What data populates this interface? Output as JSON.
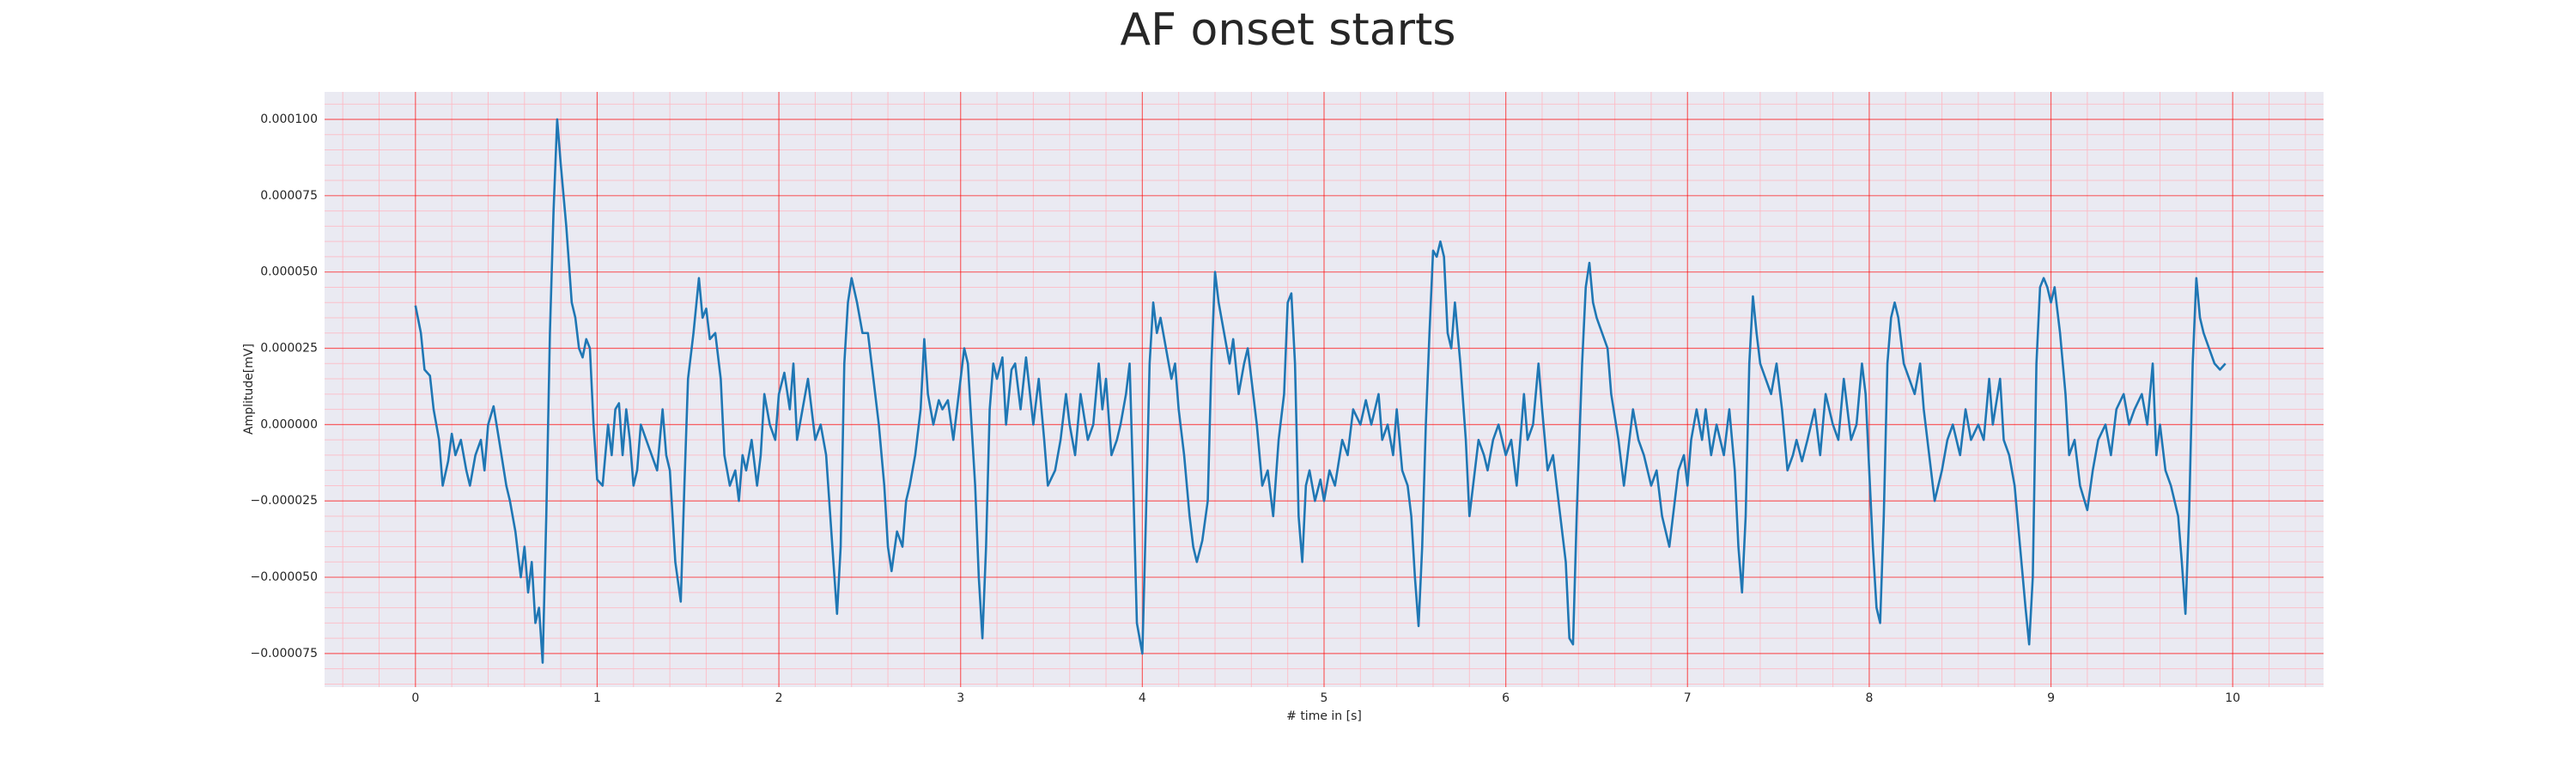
{
  "chart_data": {
    "type": "line",
    "title": "AF onset starts",
    "xlabel": "# time in [s]",
    "ylabel": "Amplitude[mV]",
    "color": "#1f77b4",
    "background": "#eaeaf2",
    "grid": true,
    "grid_color": "#ff0000",
    "minor_grid": true,
    "minor_grid_color": "#ffb6c1",
    "xlim": [
      -0.5,
      10.5
    ],
    "xticks": [
      0,
      1,
      2,
      3,
      4,
      5,
      6,
      7,
      8,
      9,
      10
    ],
    "ylim": [
      -8.6e-05,
      0.000109
    ],
    "yticks": [
      {
        "value": -7.5e-05,
        "label": "−0.000075"
      },
      {
        "value": -5e-05,
        "label": "−0.000050"
      },
      {
        "value": -2.5e-05,
        "label": "−0.000025"
      },
      {
        "value": 0,
        "label": "0.000000"
      },
      {
        "value": 2.5e-05,
        "label": "0.000025"
      },
      {
        "value": 5e-05,
        "label": "0.000050"
      },
      {
        "value": 7.5e-05,
        "label": "0.000075"
      },
      {
        "value": 0.0001,
        "label": "0.000100"
      }
    ],
    "x": [
      0.0,
      0.03,
      0.05,
      0.08,
      0.1,
      0.13,
      0.15,
      0.18,
      0.2,
      0.22,
      0.25,
      0.28,
      0.3,
      0.33,
      0.36,
      0.38,
      0.4,
      0.43,
      0.46,
      0.5,
      0.52,
      0.55,
      0.58,
      0.6,
      0.62,
      0.64,
      0.66,
      0.68,
      0.7,
      0.72,
      0.74,
      0.76,
      0.78,
      0.8,
      0.83,
      0.86,
      0.88,
      0.9,
      0.92,
      0.94,
      0.96,
      0.98,
      1.0,
      1.03,
      1.06,
      1.08,
      1.1,
      1.12,
      1.14,
      1.16,
      1.18,
      1.2,
      1.22,
      1.24,
      1.27,
      1.3,
      1.33,
      1.36,
      1.38,
      1.4,
      1.43,
      1.46,
      1.48,
      1.5,
      1.53,
      1.56,
      1.58,
      1.6,
      1.62,
      1.65,
      1.68,
      1.7,
      1.73,
      1.76,
      1.78,
      1.8,
      1.82,
      1.85,
      1.88,
      1.9,
      1.92,
      1.95,
      1.98,
      2.0,
      2.03,
      2.06,
      2.08,
      2.1,
      2.13,
      2.16,
      2.2,
      2.23,
      2.26,
      2.3,
      2.32,
      2.34,
      2.36,
      2.38,
      2.4,
      2.43,
      2.46,
      2.49,
      2.52,
      2.55,
      2.58,
      2.6,
      2.62,
      2.65,
      2.68,
      2.7,
      2.72,
      2.75,
      2.78,
      2.8,
      2.82,
      2.85,
      2.88,
      2.9,
      2.93,
      2.96,
      3.0,
      3.02,
      3.04,
      3.06,
      3.08,
      3.1,
      3.12,
      3.14,
      3.16,
      3.18,
      3.2,
      3.23,
      3.25,
      3.28,
      3.3,
      3.33,
      3.36,
      3.4,
      3.43,
      3.46,
      3.48,
      3.52,
      3.55,
      3.58,
      3.6,
      3.63,
      3.66,
      3.7,
      3.73,
      3.76,
      3.78,
      3.8,
      3.83,
      3.86,
      3.88,
      3.91,
      3.93,
      3.95,
      3.97,
      4.0,
      4.02,
      4.04,
      4.06,
      4.08,
      4.1,
      4.13,
      4.16,
      4.18,
      4.2,
      4.23,
      4.26,
      4.28,
      4.3,
      4.33,
      4.36,
      4.38,
      4.4,
      4.42,
      4.45,
      4.48,
      4.5,
      4.53,
      4.56,
      4.58,
      4.6,
      4.63,
      4.66,
      4.69,
      4.72,
      4.75,
      4.78,
      4.8,
      4.82,
      4.84,
      4.86,
      4.88,
      4.9,
      4.92,
      4.95,
      4.98,
      5.0,
      5.03,
      5.06,
      5.1,
      5.13,
      5.16,
      5.2,
      5.23,
      5.26,
      5.3,
      5.32,
      5.35,
      5.38,
      5.4,
      5.43,
      5.46,
      5.48,
      5.5,
      5.52,
      5.54,
      5.56,
      5.58,
      5.6,
      5.62,
      5.64,
      5.66,
      5.68,
      5.7,
      5.72,
      5.75,
      5.78,
      5.8,
      5.82,
      5.85,
      5.88,
      5.9,
      5.93,
      5.96,
      6.0,
      6.03,
      6.06,
      6.1,
      6.12,
      6.15,
      6.18,
      6.2,
      6.23,
      6.26,
      6.3,
      6.33,
      6.35,
      6.37,
      6.39,
      6.42,
      6.44,
      6.46,
      6.48,
      6.5,
      6.53,
      6.56,
      6.58,
      6.62,
      6.65,
      6.68,
      6.7,
      6.73,
      6.76,
      6.8,
      6.83,
      6.86,
      6.9,
      6.92,
      6.95,
      6.98,
      7.0,
      7.02,
      7.05,
      7.08,
      7.1,
      7.13,
      7.16,
      7.2,
      7.23,
      7.26,
      7.28,
      7.3,
      7.32,
      7.34,
      7.36,
      7.38,
      7.4,
      7.43,
      7.46,
      7.49,
      7.52,
      7.55,
      7.58,
      7.6,
      7.63,
      7.66,
      7.7,
      7.73,
      7.76,
      7.8,
      7.83,
      7.86,
      7.9,
      7.93,
      7.96,
      7.98,
      8.0,
      8.02,
      8.04,
      8.06,
      8.08,
      8.1,
      8.12,
      8.14,
      8.16,
      8.19,
      8.22,
      8.25,
      8.28,
      8.3,
      8.33,
      8.36,
      8.4,
      8.43,
      8.46,
      8.5,
      8.53,
      8.56,
      8.6,
      8.63,
      8.66,
      8.68,
      8.72,
      8.74,
      8.77,
      8.8,
      8.83,
      8.86,
      8.88,
      8.9,
      8.92,
      8.94,
      8.96,
      8.98,
      9.0,
      9.02,
      9.05,
      9.08,
      9.1,
      9.13,
      9.16,
      9.2,
      9.23,
      9.26,
      9.3,
      9.33,
      9.36,
      9.4,
      9.43,
      9.46,
      9.5,
      9.53,
      9.56,
      9.58,
      9.6,
      9.63,
      9.66,
      9.7,
      9.72,
      9.74,
      9.76,
      9.78,
      9.8,
      9.82,
      9.84,
      9.87,
      9.9,
      9.93,
      9.96
    ],
    "values": [
      3.9e-05,
      3e-05,
      1.8e-05,
      1.6e-05,
      5e-06,
      -5e-06,
      -2e-05,
      -1.2e-05,
      -3e-06,
      -1e-05,
      -5e-06,
      -1.5e-05,
      -2e-05,
      -1e-05,
      -5e-06,
      -1.5e-05,
      0,
      6e-06,
      -5e-06,
      -2e-05,
      -2.5e-05,
      -3.5e-05,
      -5e-05,
      -4e-05,
      -5.5e-05,
      -4.5e-05,
      -6.5e-05,
      -6e-05,
      -7.8e-05,
      -3e-05,
      3e-05,
      7e-05,
      0.0001,
      8.5e-05,
      6.5e-05,
      4e-05,
      3.5e-05,
      2.5e-05,
      2.2e-05,
      2.8e-05,
      2.5e-05,
      0,
      -1.8e-05,
      -2e-05,
      0,
      -1e-05,
      5e-06,
      7e-06,
      -1e-05,
      5e-06,
      -5e-06,
      -2e-05,
      -1.5e-05,
      0,
      -5e-06,
      -1e-05,
      -1.5e-05,
      5e-06,
      -1e-05,
      -1.5e-05,
      -4.5e-05,
      -5.8e-05,
      -2e-05,
      1.5e-05,
      3e-05,
      4.8e-05,
      3.5e-05,
      3.8e-05,
      2.8e-05,
      3e-05,
      1.5e-05,
      -1e-05,
      -2e-05,
      -1.5e-05,
      -2.5e-05,
      -1e-05,
      -1.5e-05,
      -5e-06,
      -2e-05,
      -1e-05,
      1e-05,
      0,
      -5e-06,
      1e-05,
      1.7e-05,
      5e-06,
      2e-05,
      -5e-06,
      5e-06,
      1.5e-05,
      -5e-06,
      0,
      -1e-05,
      -4.5e-05,
      -6.2e-05,
      -4e-05,
      2e-05,
      4e-05,
      4.8e-05,
      4e-05,
      3e-05,
      3e-05,
      1.5e-05,
      0,
      -2e-05,
      -4e-05,
      -4.8e-05,
      -3.5e-05,
      -4e-05,
      -2.5e-05,
      -2e-05,
      -1e-05,
      5e-06,
      2.8e-05,
      1e-05,
      0,
      8e-06,
      5e-06,
      8e-06,
      -5e-06,
      1.5e-05,
      2.5e-05,
      2e-05,
      0,
      -2e-05,
      -5e-05,
      -7e-05,
      -4e-05,
      5e-06,
      2e-05,
      1.5e-05,
      2.2e-05,
      0,
      1.8e-05,
      2e-05,
      5e-06,
      2.2e-05,
      0,
      1.5e-05,
      -5e-06,
      -2e-05,
      -1.5e-05,
      -5e-06,
      1e-05,
      0,
      -1e-05,
      1e-05,
      -5e-06,
      0,
      2e-05,
      5e-06,
      1.5e-05,
      -1e-05,
      -5e-06,
      0,
      1e-05,
      2e-05,
      -2e-05,
      -6.5e-05,
      -7.5e-05,
      -3e-05,
      2e-05,
      4e-05,
      3e-05,
      3.5e-05,
      2.5e-05,
      1.5e-05,
      2e-05,
      5e-06,
      -1e-05,
      -3e-05,
      -4e-05,
      -4.5e-05,
      -3.8e-05,
      -2.5e-05,
      2e-05,
      5e-05,
      4e-05,
      3e-05,
      2e-05,
      2.8e-05,
      1e-05,
      2e-05,
      2.5e-05,
      1.5e-05,
      0,
      -2e-05,
      -1.5e-05,
      -3e-05,
      -5e-06,
      1e-05,
      4e-05,
      4.3e-05,
      2e-05,
      -3e-05,
      -4.5e-05,
      -2e-05,
      -1.5e-05,
      -2.5e-05,
      -1.8e-05,
      -2.5e-05,
      -1.5e-05,
      -2e-05,
      -5e-06,
      -1e-05,
      5e-06,
      0,
      8e-06,
      0,
      1e-05,
      -5e-06,
      0,
      -1e-05,
      5e-06,
      -1.5e-05,
      -2e-05,
      -3e-05,
      -5e-05,
      -6.6e-05,
      -4e-05,
      0,
      3e-05,
      5.7e-05,
      5.5e-05,
      6e-05,
      5.5e-05,
      3e-05,
      2.5e-05,
      4e-05,
      2e-05,
      -5e-06,
      -3e-05,
      -2e-05,
      -5e-06,
      -1e-05,
      -1.5e-05,
      -5e-06,
      0,
      -1e-05,
      -5e-06,
      -2e-05,
      1e-05,
      -5e-06,
      0,
      2e-05,
      5e-06,
      -1.5e-05,
      -1e-05,
      -3e-05,
      -4.5e-05,
      -7e-05,
      -7.2e-05,
      -3e-05,
      2e-05,
      4.5e-05,
      5.3e-05,
      4e-05,
      3.5e-05,
      3e-05,
      2.5e-05,
      1e-05,
      -5e-06,
      -2e-05,
      -5e-06,
      5e-06,
      -5e-06,
      -1e-05,
      -2e-05,
      -1.5e-05,
      -3e-05,
      -4e-05,
      -3e-05,
      -1.5e-05,
      -1e-05,
      -2e-05,
      -5e-06,
      5e-06,
      -5e-06,
      5e-06,
      -1e-05,
      0,
      -1e-05,
      5e-06,
      -1.5e-05,
      -4e-05,
      -5.5e-05,
      -3e-05,
      2e-05,
      4.2e-05,
      3e-05,
      2e-05,
      1.5e-05,
      1e-05,
      2e-05,
      5e-06,
      -1.5e-05,
      -1e-05,
      -5e-06,
      -1.2e-05,
      -5e-06,
      5e-06,
      -1e-05,
      1e-05,
      0,
      -5e-06,
      1.5e-05,
      -5e-06,
      0,
      2e-05,
      1e-05,
      -1.5e-05,
      -4e-05,
      -6e-05,
      -6.5e-05,
      -3e-05,
      2e-05,
      3.5e-05,
      4e-05,
      3.5e-05,
      2e-05,
      1.5e-05,
      1e-05,
      2e-05,
      5e-06,
      -1e-05,
      -2.5e-05,
      -1.5e-05,
      -5e-06,
      0,
      -1e-05,
      5e-06,
      -5e-06,
      0,
      -5e-06,
      1.5e-05,
      0,
      1.5e-05,
      -5e-06,
      -1e-05,
      -2e-05,
      -4e-05,
      -6e-05,
      -7.2e-05,
      -5e-05,
      2e-05,
      4.5e-05,
      4.8e-05,
      4.5e-05,
      4e-05,
      4.5e-05,
      3e-05,
      1e-05,
      -1e-05,
      -5e-06,
      -2e-05,
      -2.8e-05,
      -1.5e-05,
      -5e-06,
      0,
      -1e-05,
      5e-06,
      1e-05,
      0,
      5e-06,
      1e-05,
      0,
      2e-05,
      -1e-05,
      0,
      -1.5e-05,
      -2e-05,
      -3e-05,
      -4.5e-05,
      -6.2e-05,
      -3e-05,
      2e-05,
      4.8e-05,
      3.5e-05,
      3e-05,
      2.5e-05,
      2e-05,
      1.8e-05,
      2e-05
    ]
  }
}
